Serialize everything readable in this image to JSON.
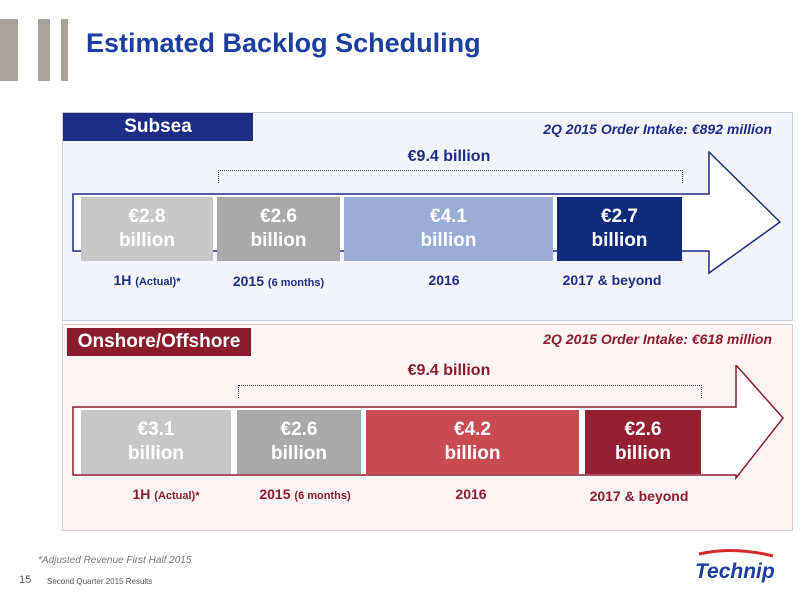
{
  "slide": {
    "title": "Estimated Backlog Scheduling",
    "footnote": "*Adjusted Revenue First Half 2015",
    "page_number": "15",
    "footer_text": "Second Quarter 2015 Results",
    "logo_text": "Technip"
  },
  "subsea": {
    "tag": "Subsea",
    "order_intake": "2Q 2015 Order Intake: €892 million",
    "total": "€9.4 billion",
    "boxes": [
      {
        "value": "€2.8",
        "unit": "billion"
      },
      {
        "value": "€2.6",
        "unit": "billion"
      },
      {
        "value": "€4.1",
        "unit": "billion"
      },
      {
        "value": "€2.7",
        "unit": "billion"
      }
    ],
    "labels": [
      {
        "main": "1H",
        "sub": "(Actual)*"
      },
      {
        "main": "2015",
        "sub": "(6 months)"
      },
      {
        "main": "2016",
        "sub": ""
      },
      {
        "main": "2017 & beyond",
        "sub": ""
      }
    ]
  },
  "onshore": {
    "tag": "Onshore/Offshore",
    "order_intake": "2Q 2015 Order Intake: €618 million",
    "total": "€9.4 billion",
    "boxes": [
      {
        "value": "€3.1",
        "unit": "billion"
      },
      {
        "value": "€2.6",
        "unit": "billion"
      },
      {
        "value": "€4.2",
        "unit": "billion"
      },
      {
        "value": "€2.6",
        "unit": "billion"
      }
    ],
    "labels": [
      {
        "main": "1H",
        "sub": "(Actual)*"
      },
      {
        "main": "2015",
        "sub": "(6 months)"
      },
      {
        "main": "2016",
        "sub": ""
      },
      {
        "main": "2017 & beyond",
        "sub": ""
      }
    ]
  },
  "colors": {
    "title": "#1a3fa0",
    "subsea_tag": "#1d2c85",
    "onshore_tag": "#8b1c2c",
    "subsea_boxes": [
      "#c8c8c8",
      "#a9a9a9",
      "#9badd6",
      "#0f2a7a"
    ],
    "onshore_boxes": [
      "#c8c8c8",
      "#a9a9a9",
      "#c94a50",
      "#962032"
    ]
  }
}
